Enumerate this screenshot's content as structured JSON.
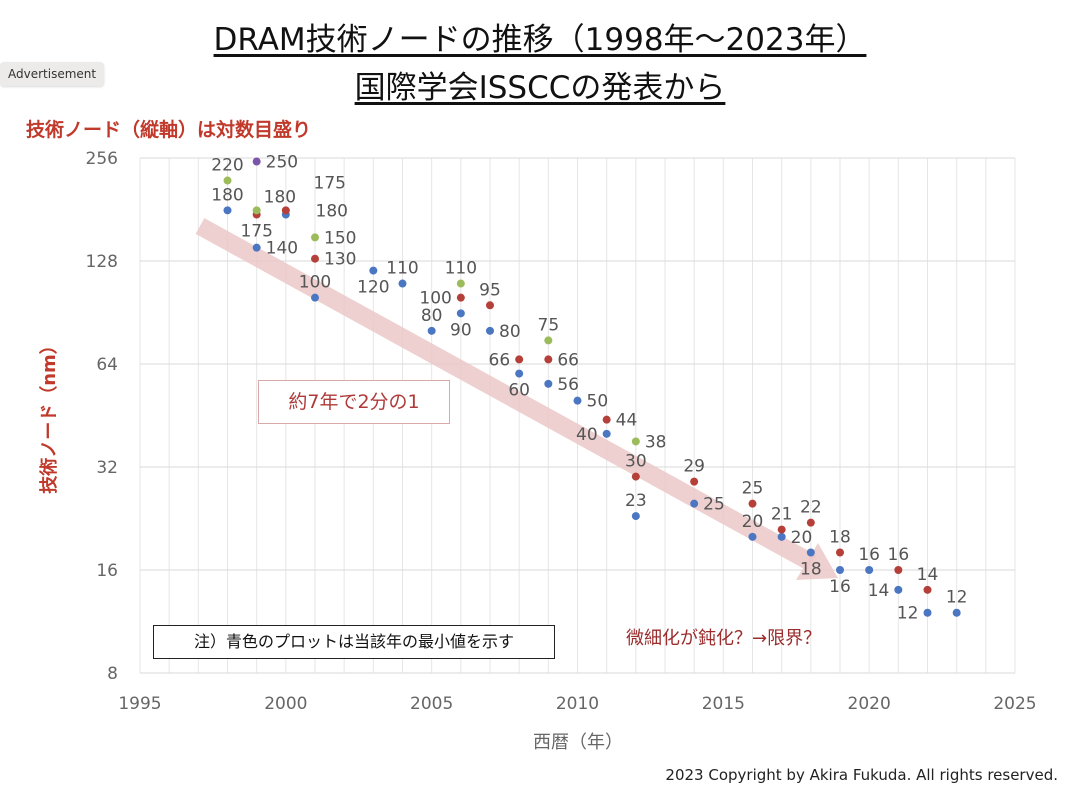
{
  "badge": "Advertisement",
  "title_line1": "DRAM技術ノードの推移（1998年～2023年）",
  "title_line2": "国際学会ISSCCの発表から",
  "log_note": "技術ノード（縦軸）は対数目盛り",
  "trend_label": "約7年で2分の1",
  "legend_note": "注）青色のプロットは当該年の最小値を示す",
  "limit_note": "微細化が鈍化？→限界？",
  "copyright": "2023 Copyright by Akira Fukuda. All rights reserved.",
  "chart_data": {
    "type": "scatter",
    "xlabel": "西暦（年）",
    "ylabel": "技術ノード（nm）",
    "xlim": [
      1995,
      2025
    ],
    "ylim": [
      8,
      256
    ],
    "yscale": "log2",
    "xticks": [
      1995,
      2000,
      2005,
      2010,
      2015,
      2020,
      2025
    ],
    "yticks": [
      8,
      16,
      32,
      64,
      128,
      256
    ],
    "grid": true,
    "colors": {
      "blue": "#4a76c2",
      "red": "#b5403a",
      "green": "#9cbb5a",
      "purple": "#7a55a8",
      "trend_arrow": "#ecc8c8"
    },
    "series": [
      {
        "color": "blue",
        "points": [
          [
            1998,
            180
          ],
          [
            1999,
            140
          ],
          [
            2000,
            175
          ],
          [
            2001,
            100
          ],
          [
            2003,
            120
          ],
          [
            2004,
            110
          ],
          [
            2005,
            80
          ],
          [
            2006,
            90
          ],
          [
            2007,
            80
          ],
          [
            2008,
            60
          ],
          [
            2009,
            56
          ],
          [
            2010,
            50
          ],
          [
            2011,
            40
          ],
          [
            2012,
            23
          ],
          [
            2014,
            25
          ],
          [
            2016,
            20
          ],
          [
            2017,
            20
          ],
          [
            2018,
            18
          ],
          [
            2019,
            16
          ],
          [
            2020,
            16
          ],
          [
            2021,
            14
          ],
          [
            2022,
            12
          ],
          [
            2023,
            12
          ]
        ]
      },
      {
        "color": "red",
        "points": [
          [
            1999,
            175
          ],
          [
            2000,
            180
          ],
          [
            2001,
            130
          ],
          [
            2006,
            100
          ],
          [
            2007,
            95
          ],
          [
            2008,
            66
          ],
          [
            2009,
            66
          ],
          [
            2011,
            44
          ],
          [
            2012,
            30
          ],
          [
            2014,
            29
          ],
          [
            2016,
            25
          ],
          [
            2017,
            21
          ],
          [
            2018,
            22
          ],
          [
            2019,
            18
          ],
          [
            2021,
            16
          ],
          [
            2022,
            14
          ]
        ]
      },
      {
        "color": "green",
        "points": [
          [
            1998,
            220
          ],
          [
            1999,
            180
          ],
          [
            2001,
            150
          ],
          [
            2006,
            110
          ],
          [
            2009,
            75
          ],
          [
            2012,
            38
          ]
        ]
      },
      {
        "color": "purple",
        "points": [
          [
            1999,
            250
          ]
        ]
      }
    ]
  }
}
